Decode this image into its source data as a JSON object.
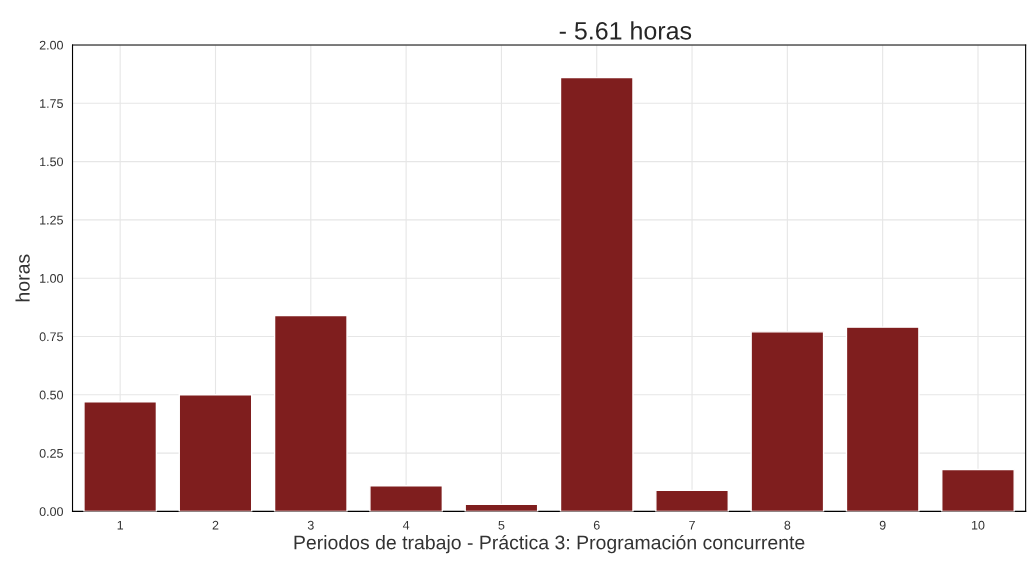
{
  "chart_data": {
    "type": "bar",
    "title": "- 5.61 horas",
    "xlabel": "Periodos de trabajo - Práctica 3: Programación concurrente",
    "ylabel": "horas",
    "categories": [
      "1",
      "2",
      "3",
      "4",
      "5",
      "6",
      "7",
      "8",
      "9",
      "10"
    ],
    "values": [
      0.47,
      0.5,
      0.84,
      0.11,
      0.03,
      1.86,
      0.09,
      0.77,
      0.79,
      0.18
    ],
    "color": "#7f1e1e",
    "ylim": [
      0,
      2
    ],
    "yticks": [
      {
        "value": 0,
        "label": "0.00"
      },
      {
        "value": 0.25,
        "label": "0.25"
      },
      {
        "value": 0.5,
        "label": "0.50"
      },
      {
        "value": 0.75,
        "label": "0.75"
      },
      {
        "value": 1,
        "label": "1.00"
      },
      {
        "value": 1.25,
        "label": "1.25"
      },
      {
        "value": 1.5,
        "label": "1.50"
      },
      {
        "value": 1.75,
        "label": "1.75"
      },
      {
        "value": 2,
        "label": "2.00"
      }
    ],
    "grid": true
  }
}
